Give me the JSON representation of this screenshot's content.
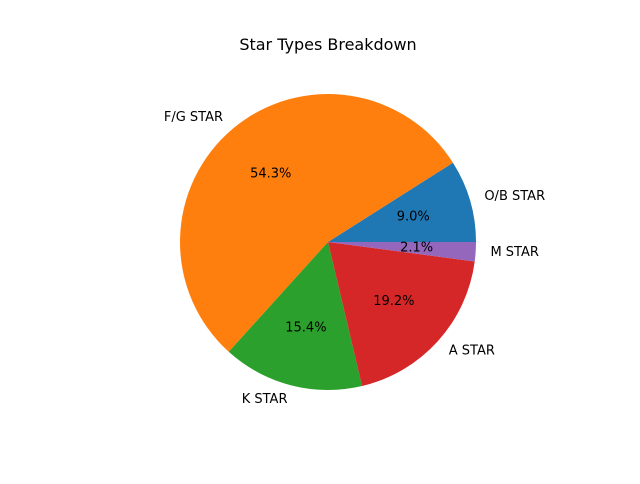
{
  "chart_data": {
    "type": "pie",
    "title": "Star Types Breakdown",
    "slices": [
      {
        "label": "O/B STAR",
        "value": 9.0,
        "pct_label": "9.0%",
        "color": "#1f77b4"
      },
      {
        "label": "F/G STAR",
        "value": 54.3,
        "pct_label": "54.3%",
        "color": "#ff7f0e"
      },
      {
        "label": "K STAR",
        "value": 15.4,
        "pct_label": "15.4%",
        "color": "#2ca02c"
      },
      {
        "label": "A STAR",
        "value": 19.2,
        "pct_label": "19.2%",
        "color": "#d62728"
      },
      {
        "label": "M STAR",
        "value": 2.1,
        "pct_label": "2.1%",
        "color": "#9467bd"
      }
    ],
    "start_angle_deg": 0,
    "direction": "counterclockwise",
    "legend": "none"
  }
}
